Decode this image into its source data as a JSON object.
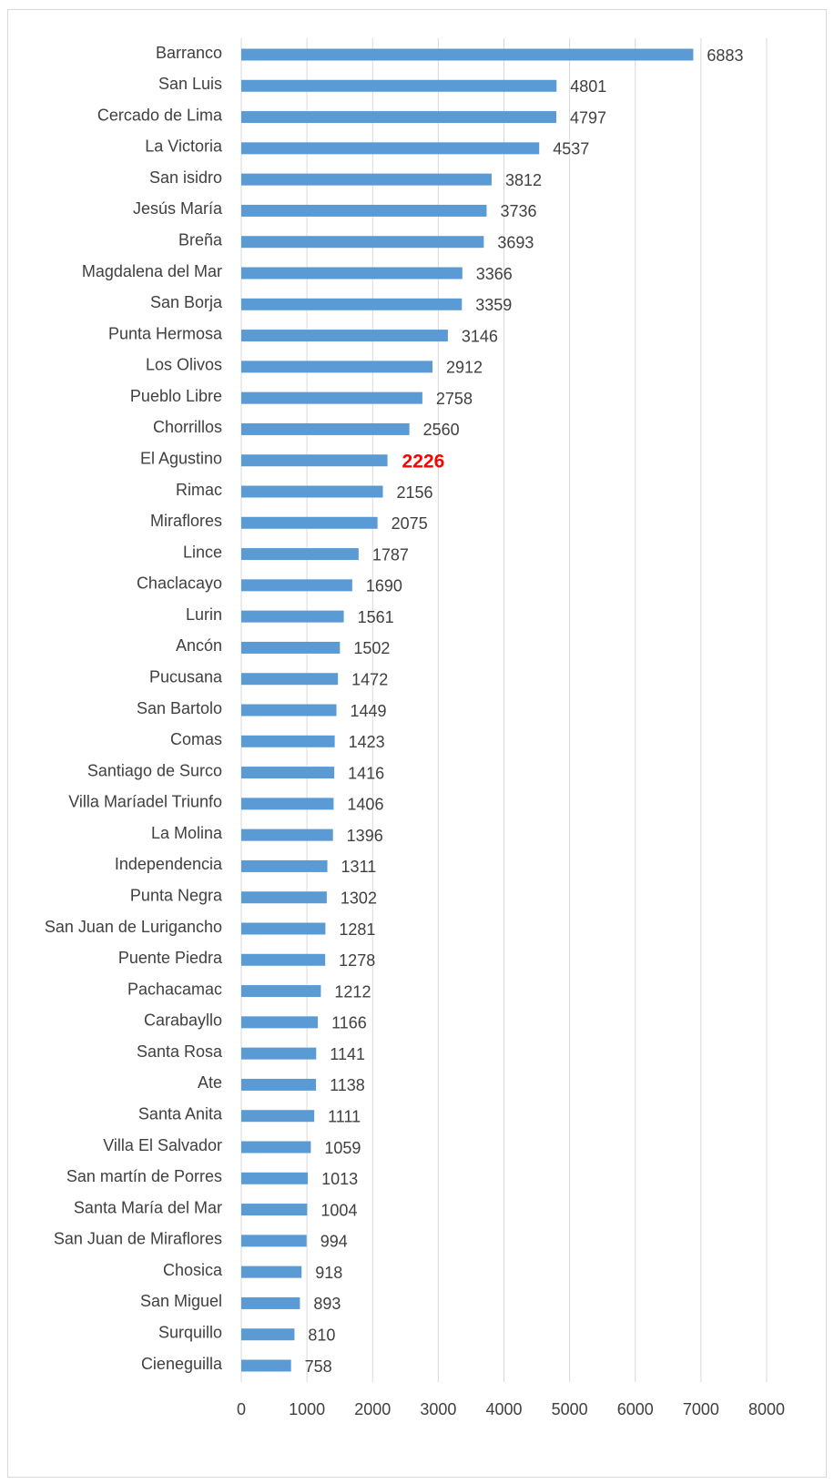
{
  "chart_data": {
    "type": "bar",
    "orientation": "horizontal",
    "categories": [
      "Barranco",
      "San Luis",
      "Cercado de Lima",
      "La Victoria",
      "San isidro",
      "Jesús María",
      "Breña",
      "Magdalena del Mar",
      "San Borja",
      "Punta Hermosa",
      "Los Olivos",
      "Pueblo Libre",
      "Chorrillos",
      "El Agustino",
      "Rimac",
      "Miraflores",
      "Lince",
      "Chaclacayo",
      "Lurin",
      "Ancón",
      "Pucusana",
      "San Bartolo",
      "Comas ",
      "Santiago de Surco",
      "Villa Maríadel Triunfo",
      "La Molina",
      "Independencia",
      "Punta Negra",
      "San Juan de Lurigancho",
      "Puente Piedra",
      "Pachacamac",
      "Carabayllo",
      "Santa Rosa",
      "Ate",
      "Santa Anita",
      "Villa El Salvador",
      "San martín de Porres",
      "Santa María del Mar",
      "San Juan de Miraflores",
      "Chosica",
      "San Miguel",
      "Surquillo",
      "Cieneguilla"
    ],
    "values": [
      6883,
      4801,
      4797,
      4537,
      3812,
      3736,
      3693,
      3366,
      3359,
      3146,
      2912,
      2758,
      2560,
      2226,
      2156,
      2075,
      1787,
      1690,
      1561,
      1502,
      1472,
      1449,
      1423,
      1416,
      1406,
      1396,
      1311,
      1302,
      1281,
      1278,
      1212,
      1166,
      1141,
      1138,
      1111,
      1059,
      1013,
      1004,
      994,
      918,
      893,
      810,
      758
    ],
    "color": "#5b9bd5",
    "xlim": [
      0,
      8000
    ],
    "xticks": [
      0,
      1000,
      2000,
      3000,
      4000,
      5000,
      6000,
      7000,
      8000
    ],
    "grid": true,
    "highlight": {
      "category": "El Agustino",
      "color": "#ff0000",
      "bold": true
    }
  }
}
